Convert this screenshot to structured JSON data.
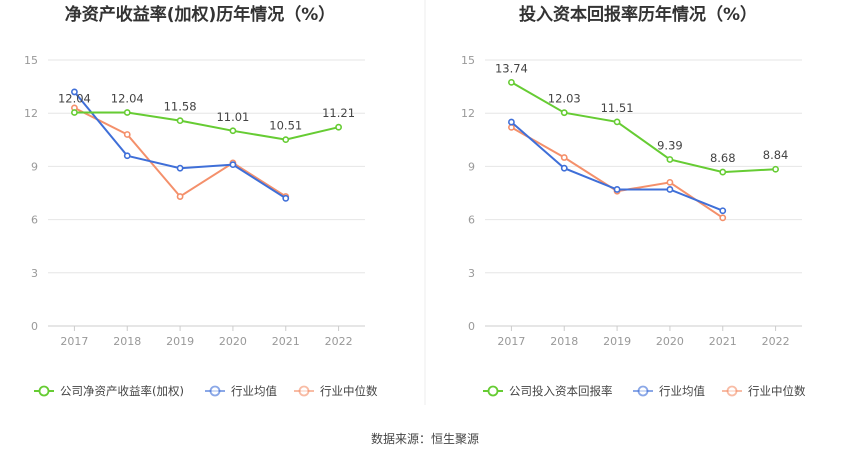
{
  "source_text": "数据来源：恒生聚源",
  "colors": {
    "company": "#66cc33",
    "industry_mean": "#3f6fd8",
    "industry_median": "#f4906b",
    "grid": "#e6e6e6",
    "axis": "#cccccc"
  },
  "chart_data": [
    {
      "type": "line",
      "title": "净资产收益率(加权)历年情况（%）",
      "x": [
        "2017",
        "2018",
        "2019",
        "2020",
        "2021",
        "2022"
      ],
      "ylim": [
        0,
        15
      ],
      "yticks": [
        0,
        3,
        6,
        9,
        12,
        15
      ],
      "grid": true,
      "legend_position": "bottom",
      "series": [
        {
          "name": "公司净资产收益率(加权)",
          "color_key": "company",
          "labeled": true,
          "values": [
            12.04,
            12.04,
            11.58,
            11.01,
            10.51,
            11.21
          ],
          "labels": [
            "12.04",
            "12.04",
            "11.58",
            "11.01",
            "10.51",
            "11.21"
          ]
        },
        {
          "name": "行业均值",
          "color_key": "industry_mean",
          "labeled": false,
          "values": [
            13.2,
            9.6,
            8.9,
            9.1,
            7.2,
            null
          ]
        },
        {
          "name": "行业中位数",
          "color_key": "industry_median",
          "labeled": false,
          "values": [
            12.3,
            10.8,
            7.3,
            9.2,
            7.3,
            null
          ]
        }
      ]
    },
    {
      "type": "line",
      "title": "投入资本回报率历年情况（%）",
      "x": [
        "2017",
        "2018",
        "2019",
        "2020",
        "2021",
        "2022"
      ],
      "ylim": [
        0,
        15
      ],
      "yticks": [
        0,
        3,
        6,
        9,
        12,
        15
      ],
      "grid": true,
      "legend_position": "bottom",
      "series": [
        {
          "name": "公司投入资本回报率",
          "color_key": "company",
          "labeled": true,
          "values": [
            13.74,
            12.03,
            11.51,
            9.39,
            8.68,
            8.84
          ],
          "labels": [
            "13.74",
            "12.03",
            "11.51",
            "9.39",
            "8.68",
            "8.84"
          ]
        },
        {
          "name": "行业均值",
          "color_key": "industry_mean",
          "labeled": false,
          "values": [
            11.5,
            8.9,
            7.7,
            7.7,
            6.5,
            null
          ]
        },
        {
          "name": "行业中位数",
          "color_key": "industry_median",
          "labeled": false,
          "values": [
            11.2,
            9.5,
            7.6,
            8.1,
            6.1,
            null
          ]
        }
      ]
    }
  ]
}
